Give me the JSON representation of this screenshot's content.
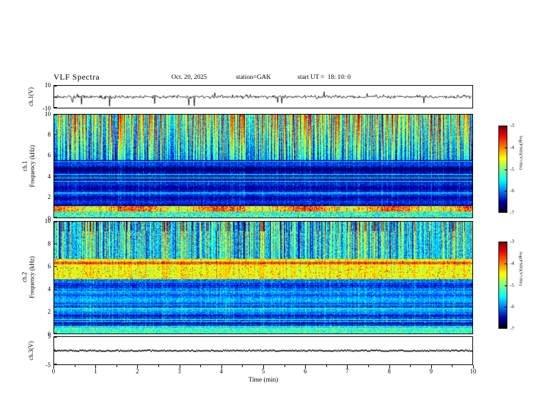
{
  "header": {
    "title": "VLF Spectra",
    "date": "Oct. 20, 2025",
    "station": "station=GAK",
    "start_ut": "start UT =  18: 10: 0"
  },
  "x_axis": {
    "label": "Time (min)",
    "range": [
      0,
      10
    ],
    "ticks": [
      0,
      1,
      2,
      3,
      4,
      5,
      6,
      7,
      8,
      9,
      10
    ]
  },
  "colorbar": {
    "label": "log(PSD)(V²/Hz)",
    "range": [
      -7,
      -3
    ],
    "ticks": [
      -3,
      -4,
      -5,
      -6,
      -7
    ]
  },
  "panels": [
    {
      "id": "ch1-waveform",
      "ylabel": "ch.1(V)",
      "ylim": [
        -10,
        10
      ],
      "yticks": [
        10,
        -10
      ]
    },
    {
      "id": "ch1-spectrogram",
      "ylabel_line1": "ch.1",
      "ylabel_line2": "Frequency (kHz)",
      "ylim": [
        0,
        10
      ],
      "yticks": [
        10,
        8,
        6,
        4,
        2,
        0
      ]
    },
    {
      "id": "ch2-spectrogram",
      "ylabel_line1": "ch.2",
      "ylabel_line2": "Frequency (kHz)",
      "ylim": [
        0,
        10
      ],
      "yticks": [
        10,
        8,
        6,
        4,
        2,
        0
      ]
    },
    {
      "id": "ch3-waveform",
      "ylabel": "ch.3(V)",
      "ylim": [
        -5,
        5
      ],
      "yticks": [
        5,
        -5
      ]
    }
  ],
  "chart_data": [
    {
      "type": "line",
      "name": "ch.1(V) waveform",
      "xlim": [
        0,
        10
      ],
      "xlabel": "Time (min)",
      "ylim": [
        -10,
        10
      ],
      "yticks": [
        10,
        -10
      ],
      "description": "continuous broadband VLF amplitude trace fluctuating about 0 V (~±2 V) for the full 10 minutes, with intermittent impulsive spikes reaching about -9 V and occasionally +4 V"
    },
    {
      "type": "heatmap",
      "name": "ch.1 spectrogram",
      "xlim": [
        0,
        10
      ],
      "xlabel": "Time (min)",
      "ylim": [
        0,
        10
      ],
      "ylabel": "Frequency (kHz)",
      "yticks": [
        0,
        2,
        4,
        6,
        8,
        10
      ],
      "value_scale": "log(PSD)(V²/Hz)",
      "value_range": [
        -7,
        -3
      ],
      "features": [
        "dense vertical sferic striations above ~5.5 kHz: green background (~-5) with yellow to red peaks (~-3.5) reaching 10 kHz",
        "dark navy/black band (~-6.5 to -7) from ~1 to ~5.5 kHz crossed by thin horizontal interference lines in lighter blue/cyan",
        "bright green-yellow band with sporadic orange/red patches near 0.7-1 kHz across the whole record",
        "occasional faint full-height vertical streaks at strong sferic times"
      ]
    },
    {
      "type": "heatmap",
      "name": "ch.2 spectrogram",
      "xlim": [
        0,
        10
      ],
      "xlabel": "Time (min)",
      "ylim": [
        0,
        10
      ],
      "ylabel": "Frequency (kHz)",
      "yticks": [
        0,
        2,
        4,
        6,
        8,
        10
      ],
      "value_scale": "log(PSD)(V²/Hz)",
      "value_range": [
        -7,
        -3
      ],
      "features": [
        "blue/cyan vertical striated texture above ~6.5 kHz with scattered dark navy column gaps and sparse yellow tips near 10 kHz",
        "bright green/cyan band with yellow speckle between ~5 and 6.5 kHz, including a persistent yellow-green line near 6.3 kHz",
        "speckled blue region 0-5 kHz with many thin horizontal cyan interference lines and a lighter band near 2 kHz",
        "green/cyan strip at the lowest frequencies (<0.5 kHz)"
      ]
    },
    {
      "type": "line",
      "name": "ch.3(V) waveform",
      "xlim": [
        0,
        10
      ],
      "xlabel": "Time (min)",
      "ylim": [
        -5,
        5
      ],
      "yticks": [
        5,
        -5
      ],
      "description": "flat dark trace at approximately 0 V for the entire interval (dead/unused channel)"
    }
  ]
}
